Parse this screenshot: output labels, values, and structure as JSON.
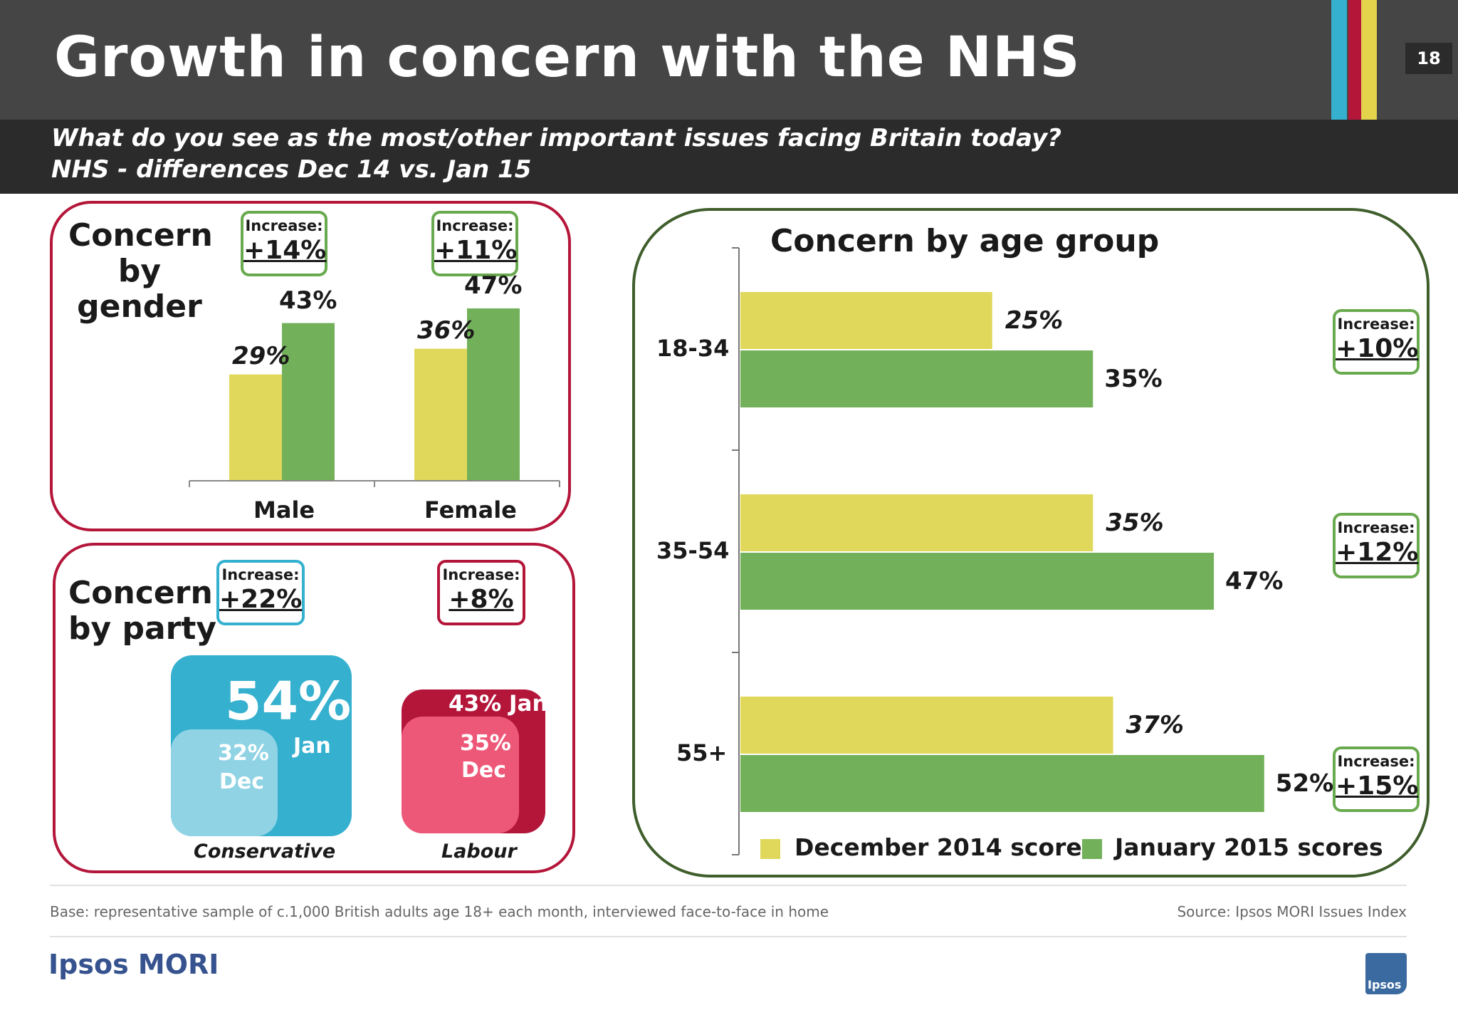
{
  "header": {
    "title": "Growth in concern with the NHS",
    "page_number": "18",
    "stripe_colors": [
      "#35b0cf",
      "#b4163a",
      "#e3d44b"
    ]
  },
  "subtitle": {
    "line1": "What do you see as the most/other important issues facing Britain today?",
    "line2": "NHS - differences Dec 14 vs. Jan 15"
  },
  "colors": {
    "december": "#e0d85a",
    "january": "#72b05a"
  },
  "gender": {
    "title_lines": [
      "Concern",
      "by",
      "gender"
    ],
    "increase_label": "Increase:",
    "male": {
      "label": "Male",
      "increase": "+14%",
      "dec_label": "29%",
      "jan_label": "43%"
    },
    "female": {
      "label": "Female",
      "increase": "+11%",
      "dec_label": "36%",
      "jan_label": "47%"
    }
  },
  "party": {
    "title_lines": [
      "Concern",
      "by party"
    ],
    "increase_label": "Increase:",
    "conservative": {
      "label": "Conservative",
      "increase": "+22%",
      "jan_value": "54%",
      "jan_word": "Jan",
      "dec_value": "32%",
      "dec_word": "Dec"
    },
    "labour": {
      "label": "Labour",
      "increase": "+8%",
      "jan_text": "43% Jan",
      "dec_value": "35%",
      "dec_word": "Dec"
    }
  },
  "age": {
    "title": "Concern by age group",
    "increase_label": "Increase:",
    "groups": [
      {
        "label": "18-34",
        "dec_label": "25%",
        "jan_label": "35%",
        "increase": "+10%"
      },
      {
        "label": "35-54",
        "dec_label": "35%",
        "jan_label": "47%",
        "increase": "+12%"
      },
      {
        "label": "55+",
        "dec_label": "37%",
        "jan_label": "52%",
        "increase": "+15%"
      }
    ],
    "legend": {
      "december": "December 2014 scores",
      "january": "January 2015 scores"
    }
  },
  "chart_data": [
    {
      "type": "bar",
      "title": "Concern by gender",
      "categories": [
        "Male",
        "Female"
      ],
      "series": [
        {
          "name": "December 2014 scores",
          "values": [
            29,
            36
          ]
        },
        {
          "name": "January 2015 scores",
          "values": [
            43,
            47
          ]
        }
      ],
      "ylim": [
        0,
        60
      ]
    },
    {
      "type": "bar",
      "title": "Concern by party",
      "categories": [
        "Conservative",
        "Labour"
      ],
      "series": [
        {
          "name": "Dec",
          "values": [
            32,
            35
          ]
        },
        {
          "name": "Jan",
          "values": [
            54,
            43
          ]
        }
      ]
    },
    {
      "type": "bar",
      "orientation": "horizontal",
      "title": "Concern by age group",
      "categories": [
        "18-34",
        "35-54",
        "55+"
      ],
      "series": [
        {
          "name": "December 2014 scores",
          "values": [
            25,
            35,
            37
          ]
        },
        {
          "name": "January 2015 scores",
          "values": [
            35,
            47,
            52
          ]
        }
      ],
      "xlim": [
        0,
        60
      ],
      "legend": "bottom"
    }
  ],
  "footer": {
    "base": "Base: representative sample of c.1,000 British adults age 18+ each month, interviewed face-to-face in home",
    "source": "Source: Ipsos MORI Issues Index",
    "logo": "Ipsos MORI",
    "icon_text": "Ipsos"
  }
}
